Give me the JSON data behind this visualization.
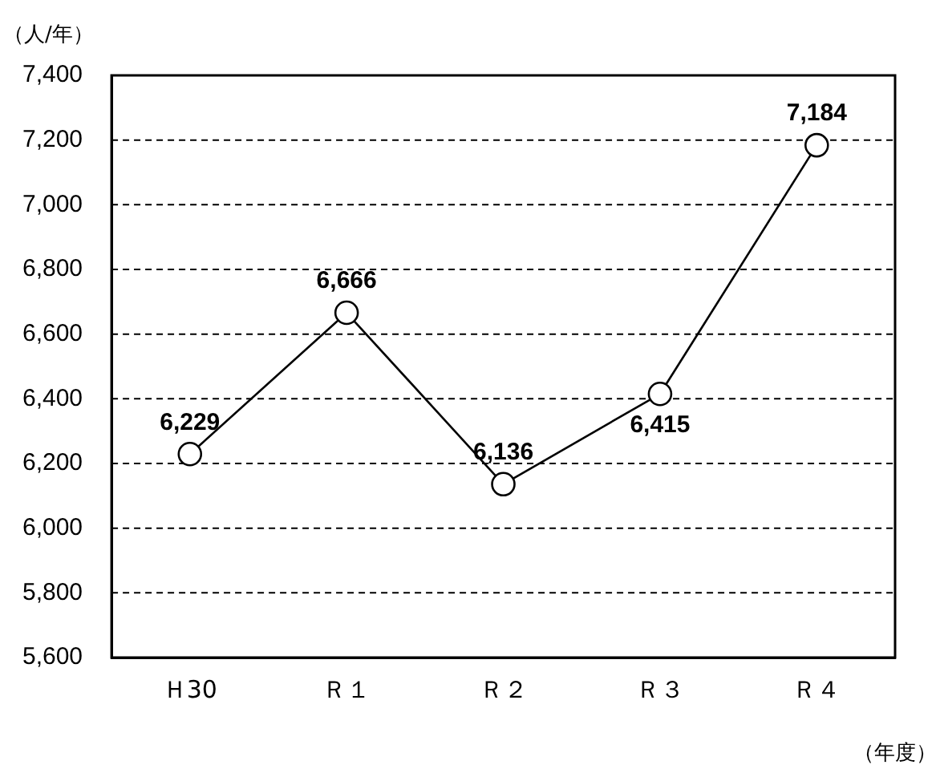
{
  "chart_data": {
    "type": "line",
    "ylabel": "（人/年）",
    "xlabel": "（年度）",
    "categories": [
      "Ｈ30",
      "Ｒ１",
      "Ｒ２",
      "Ｒ３",
      "Ｒ４"
    ],
    "series": [
      {
        "color": "#000000",
        "values": [
          6229,
          6666,
          6136,
          6415,
          7184
        ],
        "value_labels": [
          "6,229",
          "6,666",
          "6,136",
          "6,415",
          "7,184"
        ]
      }
    ],
    "ylim": [
      5600,
      7400
    ],
    "yticks": [
      {
        "value": 5600,
        "label": "5,600"
      },
      {
        "value": 5800,
        "label": "5,800"
      },
      {
        "value": 6000,
        "label": "6,000"
      },
      {
        "value": 6200,
        "label": "6,200"
      },
      {
        "value": 6400,
        "label": "6,400"
      },
      {
        "value": 6600,
        "label": "6,600"
      },
      {
        "value": 6800,
        "label": "6,800"
      },
      {
        "value": 7000,
        "label": "7,000"
      },
      {
        "value": 7200,
        "label": "7,200"
      },
      {
        "value": 7400,
        "label": "7,400"
      }
    ],
    "grid": "y",
    "marker": "circle",
    "line_style": "solid",
    "legend": false
  }
}
